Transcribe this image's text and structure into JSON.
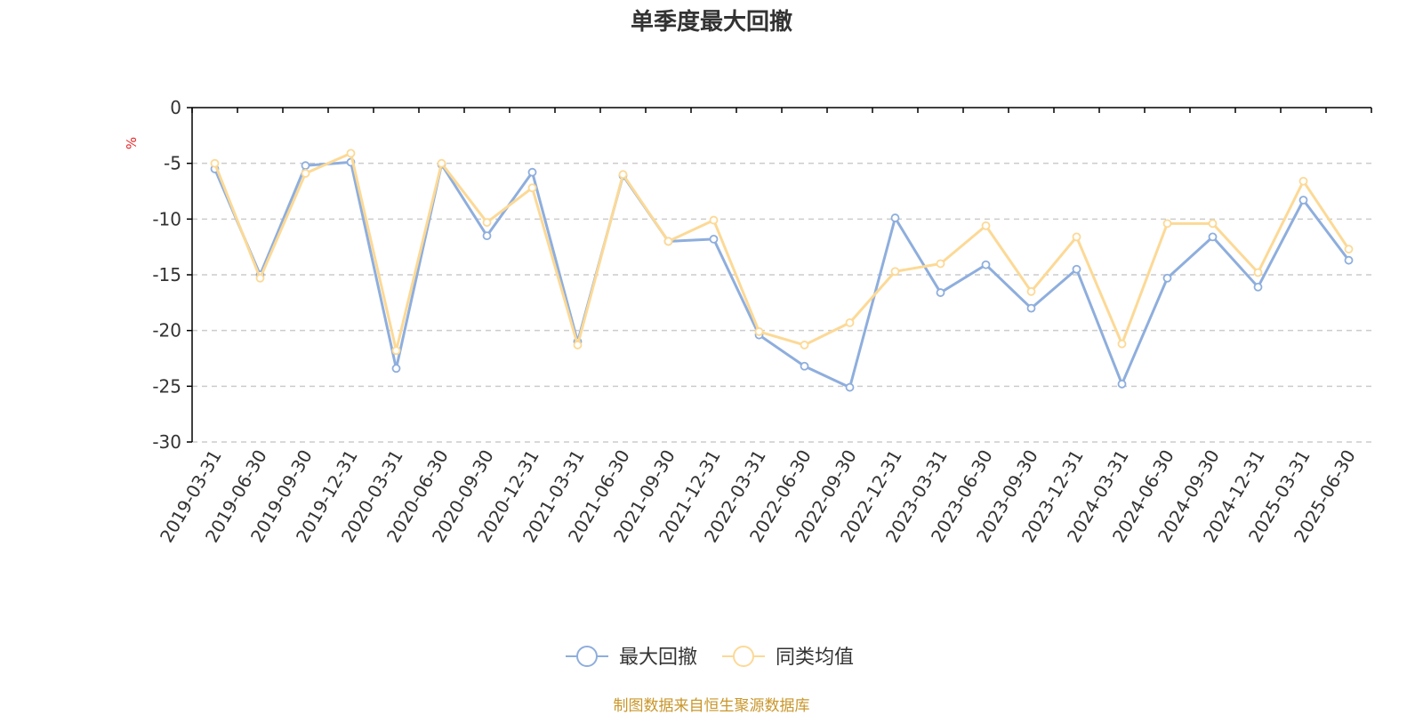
{
  "chart_data": {
    "type": "line",
    "title": "单季度最大回撤",
    "ylabel": "%",
    "xlabel": "",
    "ylim": [
      -30,
      0
    ],
    "yticks": [
      0,
      -5,
      -10,
      -15,
      -20,
      -25,
      -30
    ],
    "grid": true,
    "legend_position": "bottom",
    "categories": [
      "2019-03-31",
      "2019-06-30",
      "2019-09-30",
      "2019-12-31",
      "2020-03-31",
      "2020-06-30",
      "2020-09-30",
      "2020-12-31",
      "2021-03-31",
      "2021-06-30",
      "2021-09-30",
      "2021-12-31",
      "2022-03-31",
      "2022-06-30",
      "2022-09-30",
      "2022-12-31",
      "2023-03-31",
      "2023-06-30",
      "2023-09-30",
      "2023-12-31",
      "2024-03-31",
      "2024-06-30",
      "2024-09-30",
      "2024-12-31",
      "2025-03-31",
      "2025-06-30"
    ],
    "series": [
      {
        "name": "最大回撤",
        "color": "#8eaedd",
        "values": [
          -5.5,
          -15.0,
          -5.2,
          -4.9,
          -23.4,
          -5.1,
          -11.5,
          -5.8,
          -21.0,
          -6.1,
          -12.0,
          -11.8,
          -20.4,
          -23.2,
          -25.1,
          -9.9,
          -16.6,
          -14.1,
          -18.0,
          -14.5,
          -24.8,
          -15.3,
          -11.6,
          -16.1,
          -8.3,
          -13.7
        ]
      },
      {
        "name": "同类均值",
        "color": "#fcd996",
        "values": [
          -5.0,
          -15.3,
          -5.9,
          -4.1,
          -21.8,
          -5.0,
          -10.3,
          -7.2,
          -21.3,
          -6.0,
          -12.0,
          -10.1,
          -20.1,
          -21.3,
          -19.3,
          -14.7,
          -14.0,
          -10.6,
          -16.5,
          -11.6,
          -21.2,
          -10.4,
          -10.4,
          -14.8,
          -6.6,
          -12.7
        ]
      }
    ]
  },
  "legend": {
    "items": [
      "最大回撤",
      "同类均值"
    ]
  },
  "source_note": "制图数据来自恒生聚源数据库",
  "colors": {
    "axis": "#000000",
    "grid": "#cccccc",
    "ylabel": "#e8272a",
    "source": "#c9962a"
  }
}
